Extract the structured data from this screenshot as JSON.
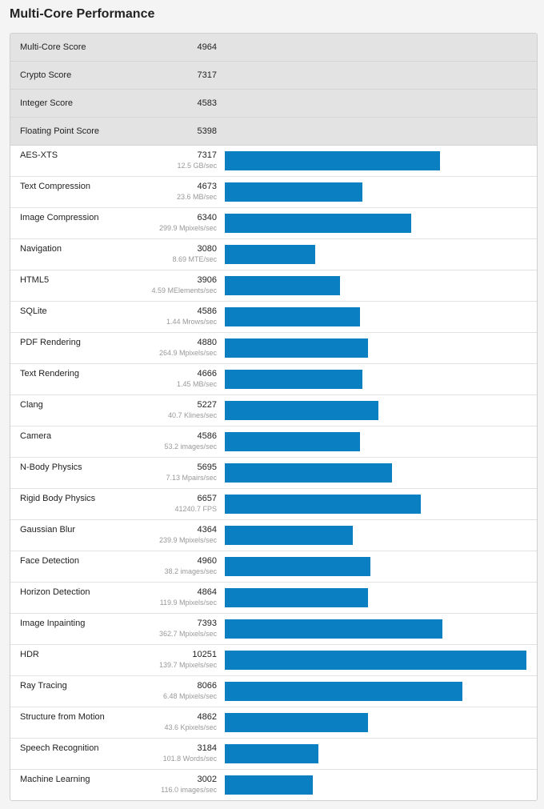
{
  "title": "Multi-Core Performance",
  "summary": [
    {
      "label": "Multi-Core Score",
      "score": "4964"
    },
    {
      "label": "Crypto Score",
      "score": "7317"
    },
    {
      "label": "Integer Score",
      "score": "4583"
    },
    {
      "label": "Floating Point Score",
      "score": "5398"
    }
  ],
  "chart_data": {
    "type": "bar",
    "orientation": "horizontal",
    "bar_color": "#0a7fc1",
    "xlim": [
      0,
      10251
    ],
    "categories": [
      "AES-XTS",
      "Text Compression",
      "Image Compression",
      "Navigation",
      "HTML5",
      "SQLite",
      "PDF Rendering",
      "Text Rendering",
      "Clang",
      "Camera",
      "N-Body Physics",
      "Rigid Body Physics",
      "Gaussian Blur",
      "Face Detection",
      "Horizon Detection",
      "Image Inpainting",
      "HDR",
      "Ray Tracing",
      "Structure from Motion",
      "Speech Recognition",
      "Machine Learning"
    ],
    "values": [
      7317,
      4673,
      6340,
      3080,
      3906,
      4586,
      4880,
      4666,
      5227,
      4586,
      5695,
      6657,
      4364,
      4960,
      4864,
      7393,
      10251,
      8066,
      4862,
      3184,
      3002
    ],
    "rates": [
      "12.5 GB/sec",
      "23.6 MB/sec",
      "299.9 Mpixels/sec",
      "8.69 MTE/sec",
      "4.59 MElements/sec",
      "1.44 Mrows/sec",
      "264.9 Mpixels/sec",
      "1.45 MB/sec",
      "40.7 Klines/sec",
      "53.2 images/sec",
      "7.13 Mpairs/sec",
      "41240.7 FPS",
      "239.9 Mpixels/sec",
      "38.2 images/sec",
      "119.9 Mpixels/sec",
      "362.7 Mpixels/sec",
      "139.7 Mpixels/sec",
      "6.48 Mpixels/sec",
      "43.6 Kpixels/sec",
      "101.8 Words/sec",
      "116.0 images/sec"
    ]
  }
}
